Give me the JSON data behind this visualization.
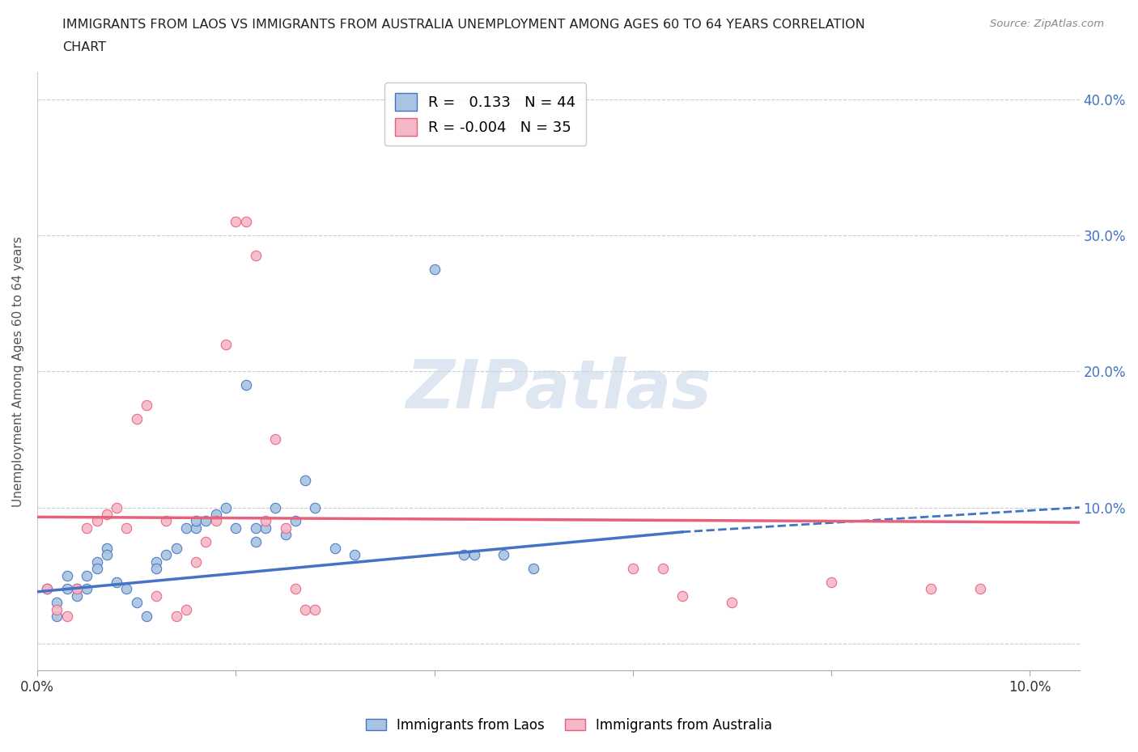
{
  "title_line1": "IMMIGRANTS FROM LAOS VS IMMIGRANTS FROM AUSTRALIA UNEMPLOYMENT AMONG AGES 60 TO 64 YEARS CORRELATION",
  "title_line2": "CHART",
  "source": "Source: ZipAtlas.com",
  "ylabel": "Unemployment Among Ages 60 to 64 years",
  "xlim": [
    0.0,
    0.105
  ],
  "ylim": [
    -0.02,
    0.42
  ],
  "xtick_positions": [
    0.0,
    0.02,
    0.04,
    0.06,
    0.08,
    0.1
  ],
  "xticklabels": [
    "0.0%",
    "",
    "",
    "",
    "",
    "10.0%"
  ],
  "ytick_positions": [
    0.0,
    0.1,
    0.2,
    0.3,
    0.4
  ],
  "ytick_labels_right": [
    "",
    "10.0%",
    "20.0%",
    "30.0%",
    "40.0%"
  ],
  "laos_R": 0.133,
  "laos_N": 44,
  "australia_R": -0.004,
  "australia_N": 35,
  "laos_color": "#a8c4e0",
  "australia_color": "#f4b8c8",
  "laos_line_color": "#4472c4",
  "australia_line_color": "#e8607a",
  "grid_color": "#cccccc",
  "background_color": "#ffffff",
  "laos_points": [
    [
      0.001,
      0.04
    ],
    [
      0.002,
      0.03
    ],
    [
      0.002,
      0.02
    ],
    [
      0.003,
      0.05
    ],
    [
      0.003,
      0.04
    ],
    [
      0.004,
      0.04
    ],
    [
      0.004,
      0.035
    ],
    [
      0.005,
      0.05
    ],
    [
      0.005,
      0.04
    ],
    [
      0.006,
      0.06
    ],
    [
      0.006,
      0.055
    ],
    [
      0.007,
      0.07
    ],
    [
      0.007,
      0.065
    ],
    [
      0.008,
      0.045
    ],
    [
      0.009,
      0.04
    ],
    [
      0.01,
      0.03
    ],
    [
      0.011,
      0.02
    ],
    [
      0.012,
      0.06
    ],
    [
      0.012,
      0.055
    ],
    [
      0.013,
      0.065
    ],
    [
      0.014,
      0.07
    ],
    [
      0.015,
      0.085
    ],
    [
      0.016,
      0.085
    ],
    [
      0.016,
      0.09
    ],
    [
      0.017,
      0.09
    ],
    [
      0.018,
      0.095
    ],
    [
      0.019,
      0.1
    ],
    [
      0.02,
      0.085
    ],
    [
      0.021,
      0.19
    ],
    [
      0.022,
      0.085
    ],
    [
      0.022,
      0.075
    ],
    [
      0.023,
      0.085
    ],
    [
      0.024,
      0.1
    ],
    [
      0.025,
      0.08
    ],
    [
      0.026,
      0.09
    ],
    [
      0.027,
      0.12
    ],
    [
      0.028,
      0.1
    ],
    [
      0.03,
      0.07
    ],
    [
      0.032,
      0.065
    ],
    [
      0.04,
      0.275
    ],
    [
      0.043,
      0.065
    ],
    [
      0.044,
      0.065
    ],
    [
      0.047,
      0.065
    ],
    [
      0.05,
      0.055
    ]
  ],
  "australia_points": [
    [
      0.001,
      0.04
    ],
    [
      0.002,
      0.025
    ],
    [
      0.003,
      0.02
    ],
    [
      0.004,
      0.04
    ],
    [
      0.005,
      0.085
    ],
    [
      0.006,
      0.09
    ],
    [
      0.007,
      0.095
    ],
    [
      0.008,
      0.1
    ],
    [
      0.009,
      0.085
    ],
    [
      0.01,
      0.165
    ],
    [
      0.011,
      0.175
    ],
    [
      0.012,
      0.035
    ],
    [
      0.013,
      0.09
    ],
    [
      0.014,
      0.02
    ],
    [
      0.015,
      0.025
    ],
    [
      0.016,
      0.06
    ],
    [
      0.017,
      0.075
    ],
    [
      0.018,
      0.09
    ],
    [
      0.019,
      0.22
    ],
    [
      0.02,
      0.31
    ],
    [
      0.021,
      0.31
    ],
    [
      0.022,
      0.285
    ],
    [
      0.023,
      0.09
    ],
    [
      0.024,
      0.15
    ],
    [
      0.025,
      0.085
    ],
    [
      0.026,
      0.04
    ],
    [
      0.027,
      0.025
    ],
    [
      0.028,
      0.025
    ],
    [
      0.06,
      0.055
    ],
    [
      0.063,
      0.055
    ],
    [
      0.065,
      0.035
    ],
    [
      0.07,
      0.03
    ],
    [
      0.08,
      0.045
    ],
    [
      0.09,
      0.04
    ],
    [
      0.095,
      0.04
    ]
  ],
  "laos_trend_solid": [
    0.0,
    0.038,
    0.065,
    0.082
  ],
  "laos_trend_dashed": [
    0.065,
    0.082,
    0.105,
    0.1
  ],
  "australia_trend": [
    0.0,
    0.093,
    0.105,
    0.089
  ],
  "watermark_text": "ZIPatlas",
  "laos_label": "Immigrants from Laos",
  "australia_label": "Immigrants from Australia"
}
